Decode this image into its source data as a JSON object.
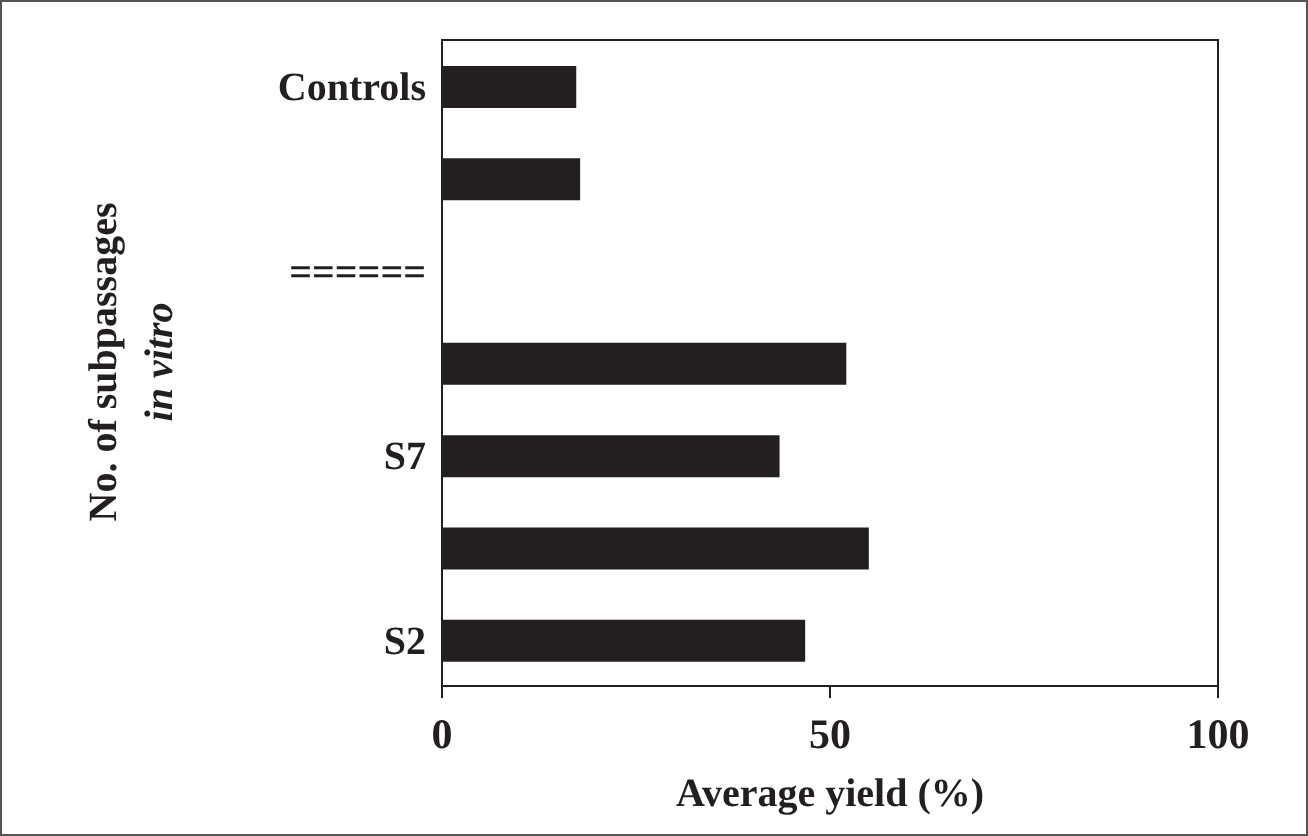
{
  "chart_data": {
    "type": "bar",
    "orientation": "horizontal",
    "categories": [
      "Controls",
      null,
      "======",
      null,
      "S7",
      null,
      "S2"
    ],
    "values": [
      17.3,
      17.8,
      null,
      52.1,
      43.5,
      55.0,
      46.8
    ],
    "color": "#231f20",
    "xlabel": "Average yield (%)",
    "ylabel": "No. of subpassages\nin vitro",
    "xlim": [
      0,
      100
    ],
    "xticks": [
      0,
      50,
      100
    ]
  }
}
